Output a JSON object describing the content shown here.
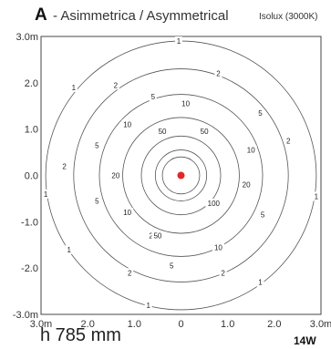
{
  "header": {
    "code": "A",
    "name": "- Asimmetrica / Asymmetrical",
    "subtitle": "Isolux (3000K)"
  },
  "footer": {
    "mounting_height": "h 785 mm",
    "power": "14W"
  },
  "chart_data": {
    "type": "contour",
    "xlim": [
      -3.0,
      3.0
    ],
    "ylim": [
      -3.0,
      3.0
    ],
    "x_ticks": [
      "3.0m",
      "2.0",
      "1.0",
      "0",
      "1.0",
      "2.0",
      "3.0m"
    ],
    "y_ticks": [
      "3.0m",
      "2.0",
      "1.0",
      "0.0",
      "-1.0",
      "-2.0",
      "-3.0m"
    ],
    "grid": false,
    "center_marker_color": "#e3262b",
    "contours": [
      {
        "level": "1",
        "radius": 2.9,
        "labels": [
          {
            "text": "1",
            "x": -0.05,
            "y": 2.9
          },
          {
            "text": "1",
            "x": -2.3,
            "y": 1.9
          },
          {
            "text": "1",
            "x": -2.9,
            "y": -0.4
          },
          {
            "text": "1",
            "x": -2.4,
            "y": -1.6
          },
          {
            "text": "1",
            "x": -0.7,
            "y": -2.8
          },
          {
            "text": "1",
            "x": 1.7,
            "y": -2.3
          },
          {
            "text": "1",
            "x": 2.9,
            "y": -0.45
          }
        ]
      },
      {
        "level": "2",
        "radius": 2.3,
        "labels": [
          {
            "text": "2",
            "x": 0.8,
            "y": 2.2
          },
          {
            "text": "2",
            "x": -1.4,
            "y": 1.95
          },
          {
            "text": "2",
            "x": -2.5,
            "y": 0.2
          },
          {
            "text": "2",
            "x": -1.1,
            "y": -2.1
          },
          {
            "text": "2",
            "x": 0.9,
            "y": -2.1
          },
          {
            "text": "2",
            "x": 2.3,
            "y": 0.75
          }
        ]
      },
      {
        "level": "5",
        "radius": 1.75,
        "labels": [
          {
            "text": "5",
            "x": -0.6,
            "y": 1.7
          },
          {
            "text": "5",
            "x": -1.8,
            "y": 0.65
          },
          {
            "text": "5",
            "x": -1.8,
            "y": -0.55
          },
          {
            "text": "5",
            "x": -0.2,
            "y": -1.95
          },
          {
            "text": "5",
            "x": 1.7,
            "y": 1.35
          },
          {
            "text": "5",
            "x": 1.75,
            "y": -0.85
          }
        ]
      },
      {
        "level": "10",
        "radius": 1.25,
        "labels": [
          {
            "text": "10",
            "x": 0.1,
            "y": 1.55
          },
          {
            "text": "10",
            "x": -1.15,
            "y": 1.1
          },
          {
            "text": "10",
            "x": -1.15,
            "y": -0.8
          },
          {
            "text": "10",
            "x": 0.8,
            "y": -1.55
          },
          {
            "text": "10",
            "x": 1.5,
            "y": 0.55
          }
        ]
      },
      {
        "level": "20",
        "radius": 0.85,
        "labels": [
          {
            "text": "20",
            "x": -1.4,
            "y": 0.0
          },
          {
            "text": "20",
            "x": -0.6,
            "y": -1.3
          },
          {
            "text": "20",
            "x": 1.4,
            "y": -0.2
          }
        ]
      },
      {
        "level": "50",
        "radius": 0.55,
        "labels": [
          {
            "text": "50",
            "x": -0.4,
            "y": 0.95
          },
          {
            "text": "50",
            "x": 0.5,
            "y": 0.95
          },
          {
            "text": "50",
            "x": -0.5,
            "y": -1.3
          }
        ]
      },
      {
        "level": "100",
        "radius": 0.4,
        "labels": [
          {
            "text": "100",
            "x": 0.7,
            "y": -0.6
          }
        ]
      }
    ]
  }
}
